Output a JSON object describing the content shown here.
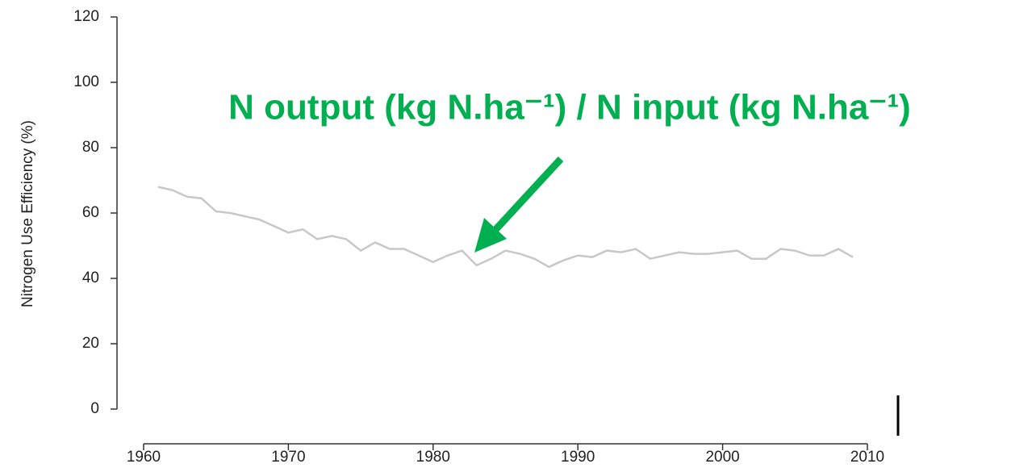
{
  "chart_data": {
    "type": "line",
    "ylabel": "Nitrogen Use Efficiency (%)",
    "annotation": "N output (kg N.ha⁻¹) / N input (kg N.ha⁻¹)",
    "annotation_color": "#00b050",
    "x": [
      1961,
      1962,
      1963,
      1964,
      1965,
      1966,
      1967,
      1968,
      1969,
      1970,
      1971,
      1972,
      1973,
      1974,
      1975,
      1976,
      1977,
      1978,
      1979,
      1980,
      1981,
      1982,
      1983,
      1984,
      1985,
      1986,
      1987,
      1988,
      1989,
      1990,
      1991,
      1992,
      1993,
      1994,
      1995,
      1996,
      1997,
      1998,
      1999,
      2000,
      2001,
      2002,
      2003,
      2004,
      2005,
      2006,
      2007,
      2008,
      2009
    ],
    "series": [
      {
        "color": "#c8c8c8",
        "values": [
          68,
          67,
          65,
          64.5,
          60.5,
          60,
          59,
          58,
          56,
          54,
          55,
          52,
          53,
          52,
          48.5,
          51,
          49,
          49,
          47,
          45,
          47,
          48.5,
          44,
          46,
          48.5,
          47.5,
          46,
          43.5,
          45.5,
          47,
          46.5,
          48.5,
          48,
          49,
          46,
          47,
          48,
          47.5,
          47.5,
          48,
          48.5,
          46,
          46,
          49,
          48.5,
          47,
          47,
          49,
          46.5
        ]
      }
    ],
    "xlim": [
      1960,
      2010
    ],
    "xticks": [
      1960,
      1970,
      1980,
      1990,
      2000,
      2010
    ],
    "ylim": [
      0,
      120
    ],
    "yticks": [
      0,
      20,
      40,
      60,
      80,
      100,
      120
    ]
  }
}
